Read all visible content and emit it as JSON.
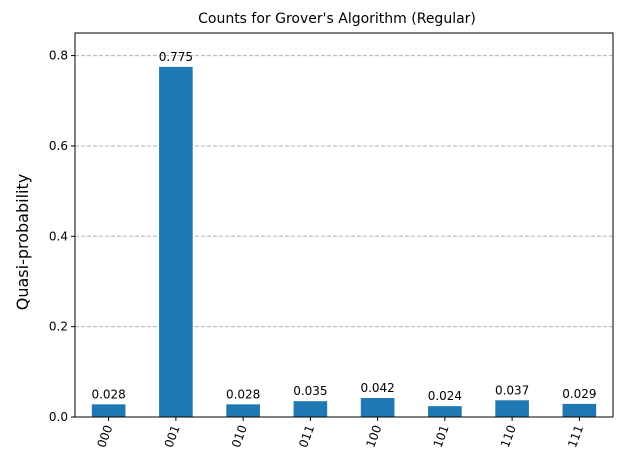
{
  "chart_data": {
    "type": "bar",
    "title": "Counts for Grover's Algorithm (Regular)",
    "xlabel": "",
    "ylabel": "Quasi-probability",
    "categories": [
      "000",
      "001",
      "010",
      "011",
      "100",
      "101",
      "110",
      "111"
    ],
    "values": [
      0.028,
      0.775,
      0.028,
      0.035,
      0.042,
      0.024,
      0.037,
      0.029
    ],
    "value_labels": [
      "0.028",
      "0.775",
      "0.028",
      "0.035",
      "0.042",
      "0.024",
      "0.037",
      "0.029"
    ],
    "ylim": [
      0,
      0.85
    ],
    "yticks": [
      0.0,
      0.2,
      0.4,
      0.6,
      0.8
    ],
    "ytick_labels": [
      "0.0",
      "0.2",
      "0.4",
      "0.6",
      "0.8"
    ],
    "grid": "y-dashed",
    "bar_color": "#1f77b4",
    "xtick_rotation": "70deg"
  }
}
